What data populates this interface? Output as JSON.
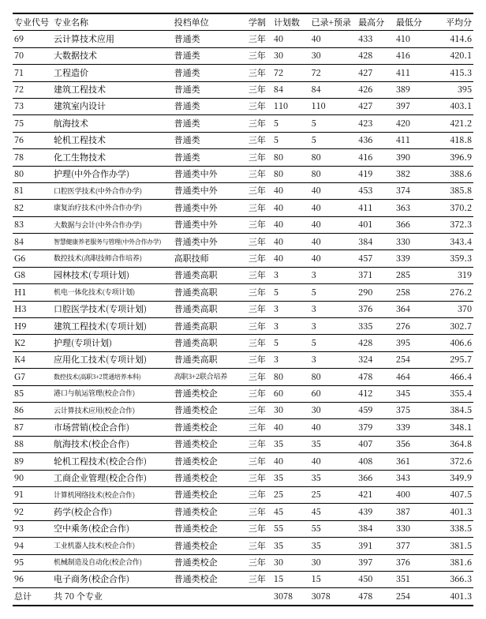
{
  "table": {
    "columns": [
      {
        "key": "code",
        "label": "专业代号",
        "class": "c-code"
      },
      {
        "key": "name",
        "label": "专业名称",
        "class": "c-name"
      },
      {
        "key": "unit",
        "label": "投档单位",
        "class": "c-unit"
      },
      {
        "key": "term",
        "label": "学制",
        "class": "c-term"
      },
      {
        "key": "plan",
        "label": "计划数",
        "class": "c-plan"
      },
      {
        "key": "adm",
        "label": "已录+预录",
        "class": "c-adm"
      },
      {
        "key": "max",
        "label": "最高分",
        "class": "c-max"
      },
      {
        "key": "min",
        "label": "最低分",
        "class": "c-min"
      },
      {
        "key": "avg",
        "label": "平均分",
        "class": "c-avg"
      }
    ],
    "rows": [
      [
        "69",
        "云计算技术应用",
        "普通类",
        "三年",
        "40",
        "40",
        "433",
        "410",
        "414.6"
      ],
      [
        "70",
        "大数据技术",
        "普通类",
        "三年",
        "30",
        "30",
        "428",
        "416",
        "420.1"
      ],
      [
        "71",
        "工程造价",
        "普通类",
        "三年",
        "72",
        "72",
        "427",
        "411",
        "415.3"
      ],
      [
        "72",
        "建筑工程技术",
        "普通类",
        "三年",
        "84",
        "84",
        "426",
        "389",
        "395"
      ],
      [
        "73",
        "建筑室内设计",
        "普通类",
        "三年",
        "110",
        "110",
        "427",
        "397",
        "403.1"
      ],
      [
        "75",
        "航海技术",
        "普通类",
        "三年",
        "5",
        "5",
        "423",
        "420",
        "421.2"
      ],
      [
        "76",
        "轮机工程技术",
        "普通类",
        "三年",
        "5",
        "5",
        "436",
        "411",
        "418.8"
      ],
      [
        "78",
        "化工生物技术",
        "普通类",
        "三年",
        "80",
        "80",
        "416",
        "390",
        "396.9"
      ],
      [
        "80",
        "护理(中外合作办学)",
        "普通类中外",
        "三年",
        "80",
        "80",
        "419",
        "382",
        "388.6"
      ],
      [
        "81",
        "口腔医学技术(中外合作办学)",
        "普通类中外",
        "三年",
        "40",
        "40",
        "453",
        "374",
        "385.8"
      ],
      [
        "82",
        "康复治疗技术(中外合作办学)",
        "普通类中外",
        "三年",
        "40",
        "40",
        "411",
        "363",
        "370.2"
      ],
      [
        "83",
        "大数据与会计(中外合作办学)",
        "普通类中外",
        "三年",
        "40",
        "40",
        "401",
        "366",
        "372.3"
      ],
      [
        "84",
        "智慧健康养老服务与管理(中外合作办学)",
        "普通类中外",
        "三年",
        "40",
        "40",
        "384",
        "330",
        "343.4"
      ],
      [
        "G6",
        "数控技术(高职技师合作培养)",
        "高职技师",
        "三年",
        "40",
        "40",
        "457",
        "339",
        "359.3"
      ],
      [
        "G8",
        "园林技术(专项计划)",
        "普通类高职",
        "三年",
        "3",
        "3",
        "371",
        "285",
        "319"
      ],
      [
        "H1",
        "机电一体化技术(专项计划)",
        "普通类高职",
        "三年",
        "5",
        "5",
        "290",
        "258",
        "276.2"
      ],
      [
        "H3",
        "口腔医学技术(专项计划)",
        "普通类高职",
        "三年",
        "3",
        "3",
        "376",
        "364",
        "370"
      ],
      [
        "H9",
        "建筑工程技术(专项计划)",
        "普通类高职",
        "三年",
        "3",
        "3",
        "335",
        "276",
        "302.7"
      ],
      [
        "K2",
        "护理(专项计划)",
        "普通类高职",
        "三年",
        "5",
        "5",
        "428",
        "395",
        "406.6"
      ],
      [
        "K4",
        "应用化工技术(专项计划)",
        "普通类高职",
        "三年",
        "3",
        "3",
        "324",
        "254",
        "295.7"
      ],
      [
        "G7",
        "数控技术(高职3+2贯通培养本科)",
        "高职3+2联合培养",
        "三年",
        "80",
        "80",
        "478",
        "464",
        "466.4"
      ],
      [
        "85",
        "港口与航运管理(校企合作)",
        "普通类校企",
        "三年",
        "60",
        "60",
        "412",
        "345",
        "355.4"
      ],
      [
        "86",
        "云计算技术应用(校企合作)",
        "普通类校企",
        "三年",
        "30",
        "30",
        "459",
        "375",
        "384.5"
      ],
      [
        "87",
        "市场营销(校企合作)",
        "普通类校企",
        "三年",
        "40",
        "40",
        "379",
        "339",
        "348.1"
      ],
      [
        "88",
        "航海技术(校企合作)",
        "普通类校企",
        "三年",
        "35",
        "35",
        "407",
        "356",
        "364.8"
      ],
      [
        "89",
        "轮机工程技术(校企合作)",
        "普通类校企",
        "三年",
        "40",
        "40",
        "408",
        "361",
        "372.6"
      ],
      [
        "90",
        "工商企业管理(校企合作)",
        "普通类校企",
        "三年",
        "35",
        "35",
        "366",
        "343",
        "349.9"
      ],
      [
        "91",
        "计算机网络技术(校企合作)",
        "普通类校企",
        "三年",
        "25",
        "25",
        "421",
        "400",
        "407.5"
      ],
      [
        "92",
        "药学(校企合作)",
        "普通类校企",
        "三年",
        "45",
        "45",
        "439",
        "387",
        "401.3"
      ],
      [
        "93",
        "空中乘务(校企合作)",
        "普通类校企",
        "三年",
        "55",
        "55",
        "384",
        "330",
        "338.5"
      ],
      [
        "94",
        "工业机器人技术(校企合作)",
        "普通类校企",
        "三年",
        "35",
        "35",
        "391",
        "377",
        "381.5"
      ],
      [
        "95",
        "机械制造及自动化(校企合作)",
        "普通类校企",
        "三年",
        "30",
        "30",
        "397",
        "376",
        "381.6"
      ],
      [
        "96",
        "电子商务(校企合作)",
        "普通类校企",
        "三年",
        "15",
        "15",
        "450",
        "351",
        "366.3"
      ]
    ],
    "totals": [
      "总计",
      "共 70 个专业",
      "",
      "",
      "3078",
      "3078",
      "478",
      "254",
      "401.3"
    ],
    "name_shrink_threshold": 16,
    "name_shrink2_threshold": 12,
    "colors": {
      "border": "#000000",
      "text": "#000000",
      "background": "#ffffff"
    }
  }
}
